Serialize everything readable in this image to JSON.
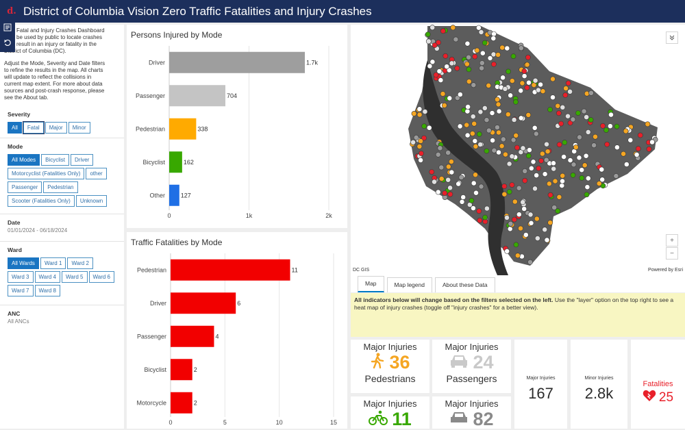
{
  "header": {
    "logo": "d.",
    "title": "District of Columbia Vision Zero Traffic Fatalities and Injury Crashes"
  },
  "left_panel": {
    "intro_lines": [
      "Fatal and Injury Crashes Dashboard",
      "be used by public to locate crashes",
      "result in an injury or fatality in the",
      "District of Columbia (DC)."
    ],
    "instructions_lines": [
      "Adjust the Mode, Severity and Date filters",
      "to refine the results in the map. All charts",
      "will update to reflect the collisions in",
      "current map extent. For more about data",
      "sources and post-crash response, please",
      "see the About tab."
    ],
    "severity": {
      "label": "Severity",
      "options": [
        "All",
        "Fatal",
        "Major",
        "Minor"
      ],
      "selected": "All"
    },
    "mode": {
      "label": "Mode",
      "options": [
        "All Modes",
        "Bicyclist",
        "Driver",
        "Motorcyclist (Fatalities Only)",
        "other",
        "Passenger",
        "Pedestrian",
        "Scooter (Fatalities Only)",
        "Unknown"
      ],
      "selected": "All Modes"
    },
    "date": {
      "label": "Date",
      "value": "01/01/2024 - 06/18/2024"
    },
    "ward": {
      "label": "Ward",
      "options": [
        "All Wards",
        "Ward 1",
        "Ward 2",
        "Ward 3",
        "Ward 4",
        "Ward 5",
        "Ward 6",
        "Ward 7",
        "Ward 8"
      ],
      "selected": "All Wards"
    },
    "anc": {
      "label": "ANC",
      "value": "All ANCs"
    }
  },
  "chart_data": [
    {
      "type": "bar",
      "orientation": "horizontal",
      "title": "Persons Injured by Mode",
      "categories": [
        "Driver",
        "Passenger",
        "Pedestrian",
        "Bicyclist",
        "Other"
      ],
      "values": [
        1700,
        704,
        338,
        162,
        127
      ],
      "value_labels": [
        "1.7k",
        "704",
        "338",
        "162",
        "127"
      ],
      "colors": [
        "#9e9e9e",
        "#c4c4c4",
        "#ffaa00",
        "#38a800",
        "#1f6fe5"
      ],
      "xlim": [
        0,
        2000
      ],
      "xticks": [
        "0",
        "1k",
        "2k"
      ],
      "grid": true
    },
    {
      "type": "bar",
      "orientation": "horizontal",
      "title": "Traffic Fatalities by Mode",
      "categories": [
        "Pedestrian",
        "Driver",
        "Passenger",
        "Bicyclist",
        "Motorcycle"
      ],
      "values": [
        11,
        6,
        4,
        2,
        2
      ],
      "value_labels": [
        "11",
        "6",
        "4",
        "2",
        "2"
      ],
      "colors": [
        "#f20000",
        "#f20000",
        "#f20000",
        "#f20000",
        "#f20000"
      ],
      "xlim": [
        0,
        15
      ],
      "xticks": [
        "0",
        "5",
        "10",
        "15"
      ],
      "grid": true
    }
  ],
  "map": {
    "attribution_left": "DC GIS",
    "attribution_right": "Powered by Esri",
    "zoom_in": "+",
    "zoom_out": "−",
    "tabs": [
      "Map",
      "Map legend",
      "About these Data"
    ],
    "active_tab": "Map",
    "colors": {
      "land": "#5c5c5c",
      "outside": "#ffffff",
      "water": "#2f2f2f",
      "river": "#3d3d3d"
    }
  },
  "notice": {
    "bold": "All indicators below will change based on the filters selected on the left.",
    "rest": " Use the \"layer\" option on the top right to see a heat map of injury crashes (toggle off \"injury crashes\" for a better view)."
  },
  "indicators": {
    "pedestrians": {
      "title": "Major Injuries",
      "value": "36",
      "label": "Pedestrians",
      "color": "#f5a623",
      "icon": "pedestrian-icon"
    },
    "passengers": {
      "title": "Major Injuries",
      "value": "24",
      "label": "Passengers",
      "color": "#c9c9c9",
      "icon": "car-icon"
    },
    "bicyclists": {
      "title": "Major Injuries",
      "value": "11",
      "color": "#38a800",
      "icon": "bicycle-icon"
    },
    "drivers": {
      "title": "Major Injuries",
      "value": "82",
      "color": "#8a8a8a",
      "icon": "car-icon"
    },
    "major_total": {
      "title": "Major Injuries",
      "value": "167"
    },
    "minor_total": {
      "title": "Minor Injuries",
      "value": "2.8k"
    },
    "fatalities": {
      "title": "Fatalities",
      "value": "25",
      "color": "#e8202a",
      "icon": "heart-icon"
    }
  }
}
